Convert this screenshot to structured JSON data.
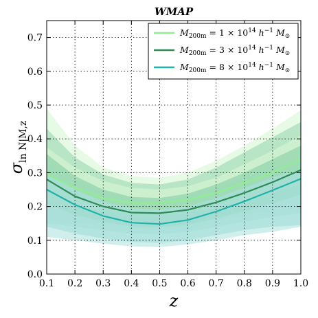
{
  "chart_data": {
    "type": "line",
    "title": "WMAP",
    "xlabel": "z",
    "ylabel": "σ_ln N|M,z",
    "xlim": [
      0.1,
      1.0
    ],
    "ylim": [
      0.0,
      0.75
    ],
    "grid": true,
    "legend_position": "top-right",
    "x_ticks": [
      "0.1",
      "0.2",
      "0.3",
      "0.4",
      "0.5",
      "0.6",
      "0.7",
      "0.8",
      "0.9",
      "1.0"
    ],
    "y_ticks": [
      "0.0",
      "0.1",
      "0.2",
      "0.3",
      "0.4",
      "0.5",
      "0.6",
      "0.7"
    ],
    "x": [
      0.1,
      0.2,
      0.3,
      0.4,
      0.5,
      0.6,
      0.7,
      0.8,
      0.9,
      1.0
    ],
    "series": [
      {
        "name": "M_200m = 1 × 10^14 h^-1 M_⊙",
        "color": "#90ee90",
        "band_color": "#d4f5d0",
        "values": [
          0.295,
          0.255,
          0.225,
          0.21,
          0.21,
          0.22,
          0.24,
          0.27,
          0.3,
          0.34
        ],
        "band_1sigma_low": [
          0.22,
          0.2,
          0.185,
          0.175,
          0.175,
          0.18,
          0.195,
          0.215,
          0.24,
          0.265
        ],
        "band_1sigma_high": [
          0.375,
          0.315,
          0.275,
          0.255,
          0.25,
          0.26,
          0.285,
          0.325,
          0.365,
          0.41
        ],
        "band_2sigma_low": [
          0.16,
          0.155,
          0.15,
          0.145,
          0.145,
          0.15,
          0.16,
          0.175,
          0.19,
          0.205
        ],
        "band_2sigma_high": [
          0.49,
          0.38,
          0.315,
          0.29,
          0.285,
          0.3,
          0.335,
          0.38,
          0.43,
          0.485
        ]
      },
      {
        "name": "M_200m = 3 × 10^14 h^-1 M_⊙",
        "color": "#2e8b57",
        "band_color": "#8fd3ad",
        "values": [
          0.28,
          0.23,
          0.2,
          0.182,
          0.18,
          0.19,
          0.212,
          0.24,
          0.272,
          0.308
        ],
        "band_1sigma_low": [
          0.21,
          0.175,
          0.155,
          0.14,
          0.138,
          0.146,
          0.165,
          0.185,
          0.21,
          0.235
        ],
        "band_1sigma_high": [
          0.355,
          0.29,
          0.25,
          0.228,
          0.225,
          0.238,
          0.265,
          0.3,
          0.34,
          0.38
        ],
        "band_2sigma_low": [
          0.15,
          0.14,
          0.13,
          0.12,
          0.118,
          0.125,
          0.14,
          0.155,
          0.17,
          0.18
        ],
        "band_2sigma_high": [
          0.43,
          0.345,
          0.295,
          0.27,
          0.265,
          0.28,
          0.315,
          0.36,
          0.405,
          0.45
        ]
      },
      {
        "name": "M_200m = 8 × 10^14 h^-1 M_⊙",
        "color": "#20b2aa",
        "band_color": "#a8e0dc",
        "values": [
          0.25,
          0.205,
          0.172,
          0.152,
          0.148,
          0.16,
          0.185,
          0.215,
          0.248,
          0.282
        ],
        "band_1sigma_low": [
          0.14,
          0.12,
          0.105,
          0.095,
          0.092,
          0.1,
          0.115,
          0.13,
          0.14,
          0.145
        ],
        "band_1sigma_high": [
          0.3,
          0.25,
          0.215,
          0.195,
          0.19,
          0.2,
          0.225,
          0.255,
          0.285,
          0.31
        ],
        "band_2sigma_low": [
          0.11,
          0.1,
          0.09,
          0.082,
          0.08,
          0.088,
          0.1,
          0.115,
          0.125,
          0.14
        ],
        "band_2sigma_high": [
          0.33,
          0.28,
          0.245,
          0.225,
          0.22,
          0.23,
          0.255,
          0.285,
          0.315,
          0.34
        ]
      }
    ]
  },
  "legend": {
    "items": [
      {
        "prefix": "M",
        "sub": "200m",
        "mid": " = 1 × 10",
        "exp": "14",
        "unit": " h",
        "unit_exp": "−1",
        "suffix": " M",
        "suffix_sub": "⊙"
      },
      {
        "prefix": "M",
        "sub": "200m",
        "mid": " = 3 × 10",
        "exp": "14",
        "unit": " h",
        "unit_exp": "−1",
        "suffix": " M",
        "suffix_sub": "⊙"
      },
      {
        "prefix": "M",
        "sub": "200m",
        "mid": " = 8 × 10",
        "exp": "14",
        "unit": " h",
        "unit_exp": "−1",
        "suffix": " M",
        "suffix_sub": "⊙"
      }
    ]
  },
  "ylabel_parts": {
    "sigma": "σ",
    "sub": "ln N|M,z"
  }
}
